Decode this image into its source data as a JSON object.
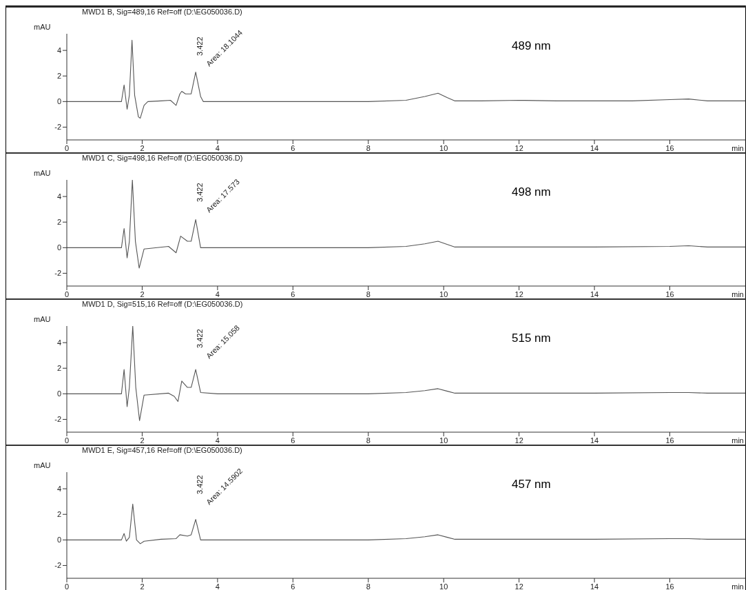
{
  "chart_data": [
    {
      "type": "line",
      "title": "MWD1 B, Sig=489,16 Ref=off (D:\\EG050036.D)",
      "ylabel": "mAU",
      "xlabel": "min",
      "xlim": [
        0,
        18
      ],
      "xticks": [
        0,
        2,
        4,
        6,
        8,
        10,
        12,
        14,
        16
      ],
      "ylim": [
        -3,
        5.3
      ],
      "yticks": [
        -2,
        0,
        2,
        4
      ],
      "marker": "none",
      "color": "#555555",
      "x": [
        0,
        1.45,
        1.52,
        1.6,
        1.66,
        1.73,
        1.8,
        1.9,
        1.95,
        2.05,
        2.15,
        2.5,
        2.75,
        2.9,
        3.0,
        3.05,
        3.15,
        3.3,
        3.42,
        3.55,
        3.62,
        4,
        6,
        8,
        9,
        9.5,
        9.85,
        10.1,
        10.3,
        11,
        12,
        13,
        14,
        15,
        16,
        16.5,
        17,
        18
      ],
      "values": [
        0,
        0,
        1.3,
        -0.6,
        0.5,
        4.8,
        0.5,
        -1.2,
        -1.3,
        -0.3,
        0,
        0.05,
        0.1,
        -0.3,
        0.6,
        0.8,
        0.6,
        0.6,
        2.3,
        0.4,
        0,
        0,
        0,
        0,
        0.1,
        0.4,
        0.65,
        0.3,
        0.05,
        0.05,
        0.1,
        0.05,
        0.05,
        0.05,
        0.15,
        0.2,
        0.05,
        0.05
      ],
      "annotations": [
        "3.422",
        "Area: 18.1044",
        "489 nm"
      ]
    },
    {
      "type": "line",
      "title": "MWD1 C, Sig=498,16 Ref=off (D:\\EG050036.D)",
      "ylabel": "mAU",
      "xlabel": "min",
      "xlim": [
        0,
        18
      ],
      "xticks": [
        0,
        2,
        4,
        6,
        8,
        10,
        12,
        14,
        16
      ],
      "ylim": [
        -3,
        5.3
      ],
      "yticks": [
        -2,
        0,
        2,
        4
      ],
      "marker": "none",
      "color": "#555555",
      "x": [
        0,
        1.45,
        1.52,
        1.6,
        1.66,
        1.74,
        1.82,
        1.92,
        2.05,
        2.7,
        2.9,
        3.02,
        3.2,
        3.3,
        3.42,
        3.55,
        4,
        6,
        8,
        9,
        9.5,
        9.85,
        10.1,
        10.3,
        11,
        12,
        14,
        16,
        16.5,
        17,
        18
      ],
      "values": [
        0,
        0,
        1.5,
        -0.8,
        0.5,
        5.3,
        0.5,
        -1.6,
        -0.1,
        0.1,
        -0.4,
        0.9,
        0.5,
        0.5,
        2.2,
        0,
        0,
        0,
        0,
        0.1,
        0.3,
        0.5,
        0.25,
        0.05,
        0.05,
        0.05,
        0.05,
        0.1,
        0.15,
        0.05,
        0.05
      ],
      "annotations": [
        "3.422",
        "Area: 17.573",
        "498 nm"
      ]
    },
    {
      "type": "line",
      "title": "MWD1 D, Sig=515,16 Ref=off (D:\\EG050036.D)",
      "ylabel": "mAU",
      "xlabel": "min",
      "xlim": [
        0,
        18
      ],
      "xticks": [
        0,
        2,
        4,
        6,
        8,
        10,
        12,
        14,
        16
      ],
      "ylim": [
        -3,
        5.3
      ],
      "yticks": [
        -2,
        0,
        2,
        4
      ],
      "marker": "none",
      "color": "#555555",
      "x": [
        0,
        1.45,
        1.52,
        1.6,
        1.66,
        1.75,
        1.83,
        1.93,
        2.05,
        2.7,
        2.85,
        2.95,
        3.05,
        3.2,
        3.3,
        3.42,
        3.55,
        4,
        6,
        8,
        9,
        9.5,
        9.85,
        10.1,
        10.3,
        11,
        12,
        14,
        16,
        16.5,
        17,
        18
      ],
      "values": [
        0,
        0,
        1.9,
        -1.0,
        0.5,
        5.3,
        0.5,
        -2.1,
        -0.1,
        0.05,
        -0.2,
        -0.6,
        1.0,
        0.5,
        0.5,
        1.9,
        0.1,
        0,
        0,
        0,
        0.1,
        0.25,
        0.4,
        0.2,
        0.05,
        0.05,
        0.05,
        0.05,
        0.1,
        0.1,
        0.05,
        0.05
      ],
      "annotations": [
        "3.422",
        "Area: 15.058",
        "515 nm"
      ]
    },
    {
      "type": "line",
      "title": "MWD1 E, Sig=457,16 Ref=off (D:\\EG050036.D)",
      "ylabel": "mAU",
      "xlabel": "min",
      "xlim": [
        0,
        18
      ],
      "xticks": [
        0,
        2,
        4,
        6,
        8,
        10,
        12,
        14,
        16
      ],
      "ylim": [
        -3,
        5.3
      ],
      "yticks": [
        -2,
        0,
        2,
        4
      ],
      "marker": "none",
      "color": "#555555",
      "x": [
        0,
        1.45,
        1.52,
        1.58,
        1.66,
        1.75,
        1.85,
        1.95,
        2.05,
        2.5,
        2.9,
        3.0,
        3.2,
        3.3,
        3.42,
        3.55,
        4,
        6,
        8,
        9,
        9.5,
        9.85,
        10.1,
        10.3,
        11,
        12,
        14,
        16,
        16.5,
        17,
        18
      ],
      "values": [
        0,
        0,
        0.5,
        -0.1,
        0.2,
        2.8,
        0,
        -0.3,
        -0.1,
        0.05,
        0.1,
        0.4,
        0.3,
        0.4,
        1.6,
        0,
        0,
        0,
        0,
        0.1,
        0.25,
        0.4,
        0.2,
        0.05,
        0.05,
        0.05,
        0.05,
        0.1,
        0.1,
        0.05,
        0.05
      ],
      "annotations": [
        "3.422",
        "Area: 14.5902",
        "457 nm"
      ]
    }
  ]
}
